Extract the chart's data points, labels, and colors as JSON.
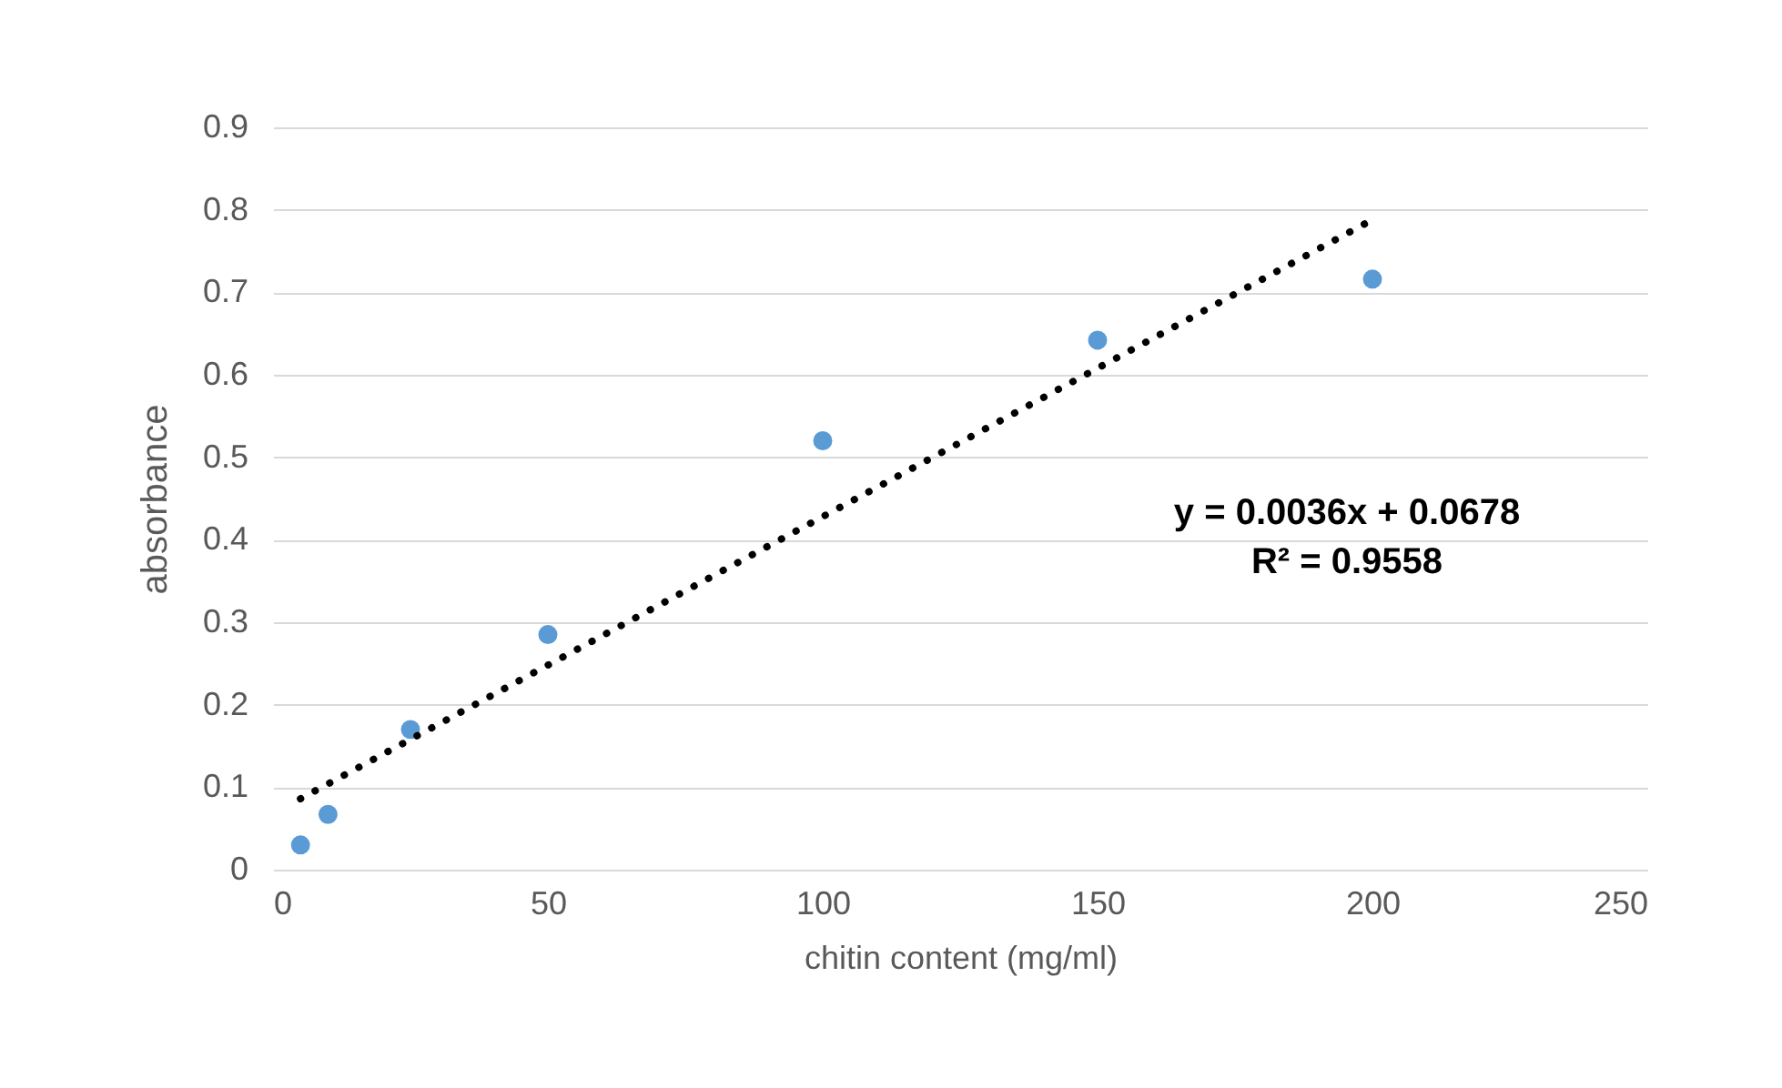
{
  "chart_data": {
    "type": "scatter",
    "xlabel": "chitin content (mg/ml)",
    "ylabel": "absorbance",
    "x": [
      5,
      10,
      25,
      50,
      100,
      150,
      200
    ],
    "series": [
      {
        "color": "#5b9bd5",
        "values": [
          0.03,
          0.067,
          0.17,
          0.285,
          0.52,
          0.642,
          0.716
        ]
      },
      {
        "type": "line",
        "color": "#000000",
        "line_style": "dotted",
        "marker": "none",
        "x": [
          5,
          200
        ],
        "values": [
          0.086,
          0.788
        ]
      }
    ],
    "annotations": [
      "y = 0.0036x + 0.0678",
      "R² = 0.9558"
    ],
    "xlim": [
      0,
      250
    ],
    "xticks": [
      0,
      50,
      100,
      150,
      200,
      250
    ],
    "ylim": [
      0,
      0.9
    ],
    "yticks": [
      0,
      0.1,
      0.2,
      0.3,
      0.4,
      0.5,
      0.6,
      0.7,
      0.8,
      0.9
    ],
    "grid": "y",
    "marker": "circle"
  }
}
